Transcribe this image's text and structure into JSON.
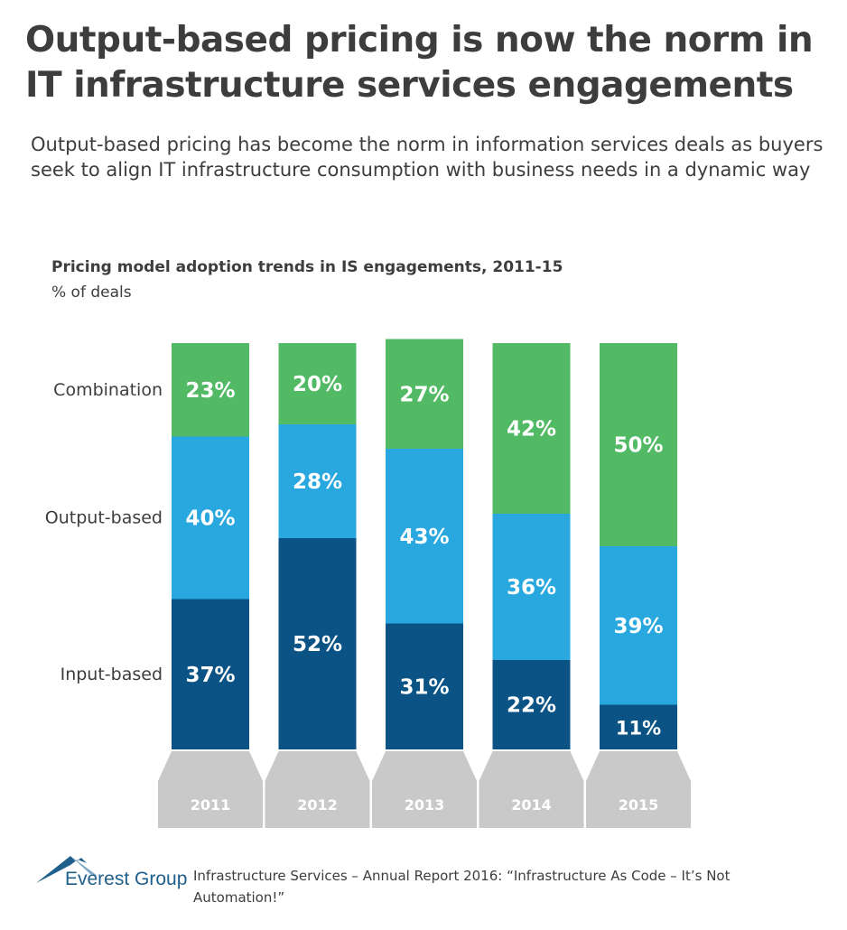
{
  "header": {
    "title": "Output-based pricing is now the norm in IT infrastructure services engagements",
    "subtitle": "Output-based pricing has become the norm in information services deals as buyers seek to align IT infrastructure consumption with business needs in a dynamic way"
  },
  "chart_data": {
    "type": "bar",
    "stacked": true,
    "title": "Pricing model adoption trends in IS engagements, 2011-15",
    "ylabel": "% of deals",
    "categories": [
      "2011",
      "2012",
      "2013",
      "2014",
      "2015"
    ],
    "series": [
      {
        "name": "Input-based",
        "values": [
          37,
          52,
          31,
          22,
          11
        ],
        "color": "#0b5384"
      },
      {
        "name": "Output-based",
        "values": [
          40,
          28,
          43,
          36,
          39
        ],
        "color": "#29a8e0"
      },
      {
        "name": "Combination",
        "values": [
          23,
          20,
          27,
          42,
          50
        ],
        "color": "#52b964"
      }
    ],
    "value_suffix": "%",
    "ylim": [
      0,
      100
    ]
  },
  "colors": {
    "axis_box": "#c9c9c9",
    "label_text": "#3d3d3d",
    "bar_text": "#ffffff",
    "logo": "#1f5f8b"
  },
  "footer": {
    "logo_text": "Everest Group",
    "source": "Infrastructure Services – Annual Report 2016: “Infrastructure As Code – It’s Not Automation!”"
  }
}
